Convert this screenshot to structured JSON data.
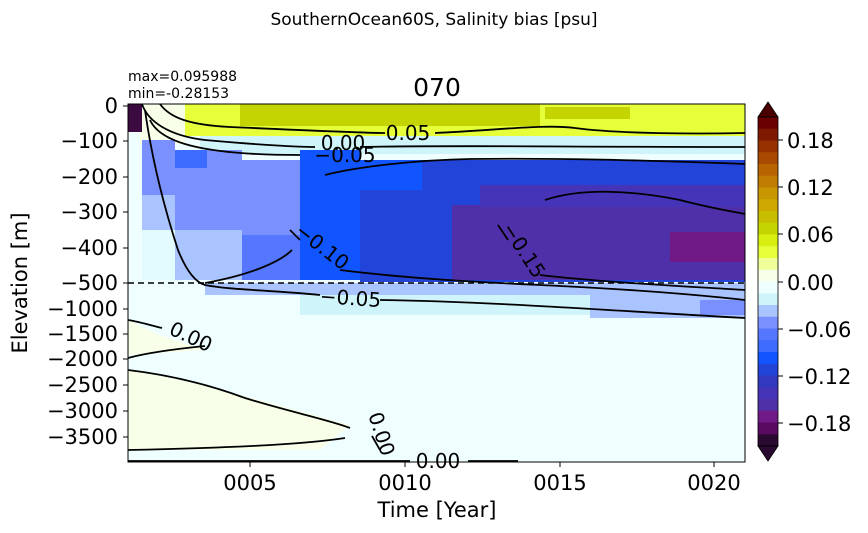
{
  "chart_data": {
    "type": "heatmap",
    "suptitle": "SouthernOcean60S, Salinity bias [psu]",
    "title": "070",
    "stats": [
      "max=0.095988",
      "min=-0.28153"
    ],
    "xlabel": "Time [Year]",
    "ylabel": "Elevation [m]",
    "x_ticks": [
      "0005",
      "0010",
      "0015",
      "0020"
    ],
    "y_ticks_upper": [
      "0",
      "−100",
      "−200",
      "−300",
      "−400",
      "−500"
    ],
    "y_ticks_lower": [
      "−1000",
      "−1500",
      "−2000",
      "−2500",
      "−3000",
      "−3500"
    ],
    "colorbar_ticks": [
      "0.18",
      "0.12",
      "0.06",
      "0.00",
      "−0.06",
      "−0.12",
      "−0.18"
    ],
    "colorbar_range": [
      -0.2,
      0.2
    ],
    "colors": {
      "c_pos_high": "#5c0a0a",
      "c_pos_mid": "#c4d400",
      "c_pos_low": "#e6ff3a",
      "c_zero_pos": "#f8ffe9",
      "c_zero_neg": "#efffff",
      "c_neg_low": "#cff5fb",
      "c_neg_mid": "#7a90ff",
      "c_neg_strong": "#1055ff",
      "c_neg_deep": "#2244d8",
      "c_neg_purple": "#5030a8",
      "c_neg_magenta": "#701a88"
    },
    "contour_labels": [
      "0.05",
      "0.00",
      "−0.05",
      "−0.10",
      "−0.15",
      "−0.05",
      "0.00",
      "0.00",
      "0.00"
    ]
  }
}
